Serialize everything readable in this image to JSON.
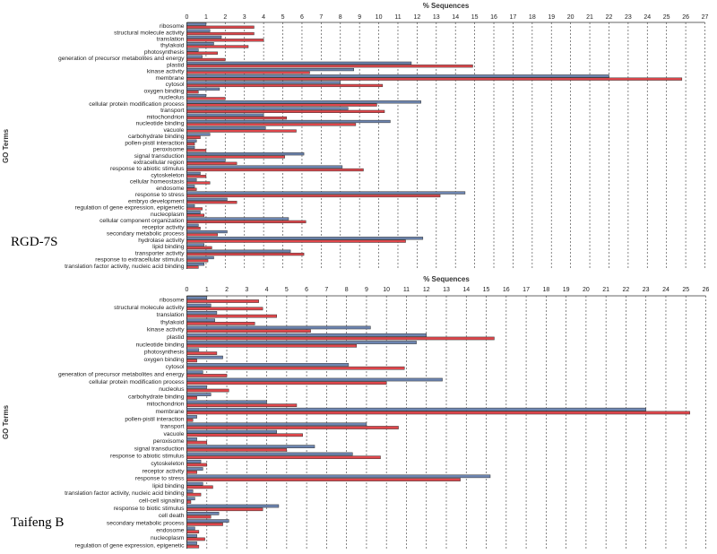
{
  "chart_data": [
    {
      "type": "bar",
      "orientation": "horizontal",
      "sample_label": "RGD-7S",
      "title": "% Sequences",
      "xlabel": "% Sequences",
      "ylabel": "GO Terms",
      "xlim": [
        0,
        27
      ],
      "xticks": [
        0,
        1,
        2,
        3,
        4,
        5,
        6,
        7,
        8,
        9,
        10,
        11,
        12,
        13,
        14,
        15,
        16,
        17,
        18,
        19,
        20,
        21,
        22,
        23,
        24,
        25,
        26,
        27
      ],
      "grid": "vertical dashed",
      "series_colors": {
        "blue": "#6d85b0",
        "red": "#e0474c"
      },
      "categories": [
        "ribosome",
        "structural molecule activity",
        "translation",
        "thylakoid",
        "photosynthesis",
        "generation of precursor metabolites and energy",
        "plastid",
        "kinase activity",
        "membrane",
        "cytosol",
        "oxygen binding",
        "nucleolus",
        "cellular protein modification process",
        "transport",
        "mitochondrion",
        "nucleotide binding",
        "vacuole",
        "carbohydrate binding",
        "pollen-pistil interaction",
        "peroxisome",
        "signal transduction",
        "extracellular region",
        "response to abiotic stimulus",
        "cytoskeleton",
        "cellular homeostasis",
        "endosome",
        "response to stress",
        "embryo development",
        "regulation of gene expression, epigenetic",
        "nucleoplasm",
        "cellular component organization",
        "receptor activity",
        "secondary metabolic process",
        "hydrolase activity",
        "lipid binding",
        "transporter activity",
        "response to extracellular stimulus",
        "translation factor activity, nucleic acid binding"
      ],
      "series": [
        {
          "name": "blue",
          "values": [
            1.0,
            1.2,
            1.8,
            1.4,
            0.6,
            0.8,
            11.7,
            8.7,
            22.0,
            8.0,
            1.7,
            1.0,
            12.2,
            8.4,
            4.0,
            10.6,
            4.1,
            1.2,
            0.5,
            0.4,
            6.1,
            2.0,
            8.1,
            0.7,
            0.5,
            0.4,
            14.5,
            2.1,
            0.4,
            0.7,
            5.3,
            0.6,
            2.1,
            12.3,
            0.9,
            5.4,
            1.4,
            0.9
          ]
        },
        {
          "name": "red",
          "values": [
            3.5,
            3.5,
            4.0,
            3.2,
            1.6,
            2.0,
            14.9,
            6.4,
            25.8,
            10.2,
            0.6,
            2.0,
            9.9,
            10.3,
            5.2,
            8.8,
            5.7,
            0.7,
            0.4,
            1.0,
            5.1,
            2.6,
            9.2,
            1.0,
            1.2,
            0.5,
            13.2,
            2.6,
            0.8,
            0.9,
            6.2,
            0.7,
            1.6,
            11.4,
            1.3,
            6.1,
            1.1,
            0.6
          ]
        }
      ]
    },
    {
      "type": "bar",
      "orientation": "horizontal",
      "sample_label": "Taifeng B",
      "title": "% Sequences",
      "xlabel": "% Sequences",
      "ylabel": "GO Terms",
      "xlim": [
        0,
        26
      ],
      "xticks": [
        0,
        1,
        2,
        3,
        4,
        5,
        6,
        7,
        8,
        9,
        10,
        11,
        12,
        13,
        14,
        15,
        16,
        17,
        18,
        19,
        20,
        21,
        22,
        23,
        24,
        25,
        26
      ],
      "grid": "vertical dashed",
      "series_colors": {
        "blue": "#6d85b0",
        "red": "#e0474c"
      },
      "categories": [
        "ribosome",
        "structural molecule activity",
        "translation",
        "thylakoid",
        "kinase activity",
        "plastid",
        "nucleotide binding",
        "photosynthesis",
        "oxygen binding",
        "cytosol",
        "generation of precursor metabolites and energy",
        "cellular protein modification process",
        "nucleolus",
        "carbohydrate binding",
        "mitochondrion",
        "membrane",
        "pollen-pistil interaction",
        "transport",
        "vacuole",
        "peroxisome",
        "signal transduction",
        "response to abiotic stimulus",
        "cytoskeleton",
        "receptor activity",
        "response to stress",
        "lipid binding",
        "translation factor activity, nucleic acid binding",
        "cell-cell signaling",
        "response to biotic stimulus",
        "cell death",
        "secondary metabolic process",
        "endosome",
        "nucleoplasm",
        "regulation of gene expression, epigenetic"
      ],
      "series": [
        {
          "name": "blue",
          "values": [
            1.0,
            1.2,
            1.5,
            1.4,
            9.2,
            12.0,
            11.5,
            0.6,
            1.8,
            8.1,
            0.8,
            12.8,
            1.0,
            1.2,
            4.0,
            23.0,
            0.5,
            9.0,
            4.5,
            0.5,
            6.4,
            8.3,
            0.7,
            0.8,
            15.2,
            0.8,
            0.3,
            0.4,
            4.6,
            1.6,
            2.1,
            0.4,
            0.5,
            0.5
          ]
        },
        {
          "name": "red",
          "values": [
            3.6,
            3.8,
            4.5,
            3.4,
            6.2,
            15.4,
            8.5,
            1.5,
            0.5,
            10.9,
            2.0,
            10.0,
            2.1,
            0.5,
            5.5,
            25.2,
            0.3,
            10.6,
            5.8,
            1.0,
            5.0,
            9.7,
            1.0,
            0.5,
            13.7,
            1.3,
            0.7,
            0.2,
            3.8,
            1.2,
            1.8,
            0.6,
            0.9,
            0.6
          ]
        }
      ]
    }
  ]
}
